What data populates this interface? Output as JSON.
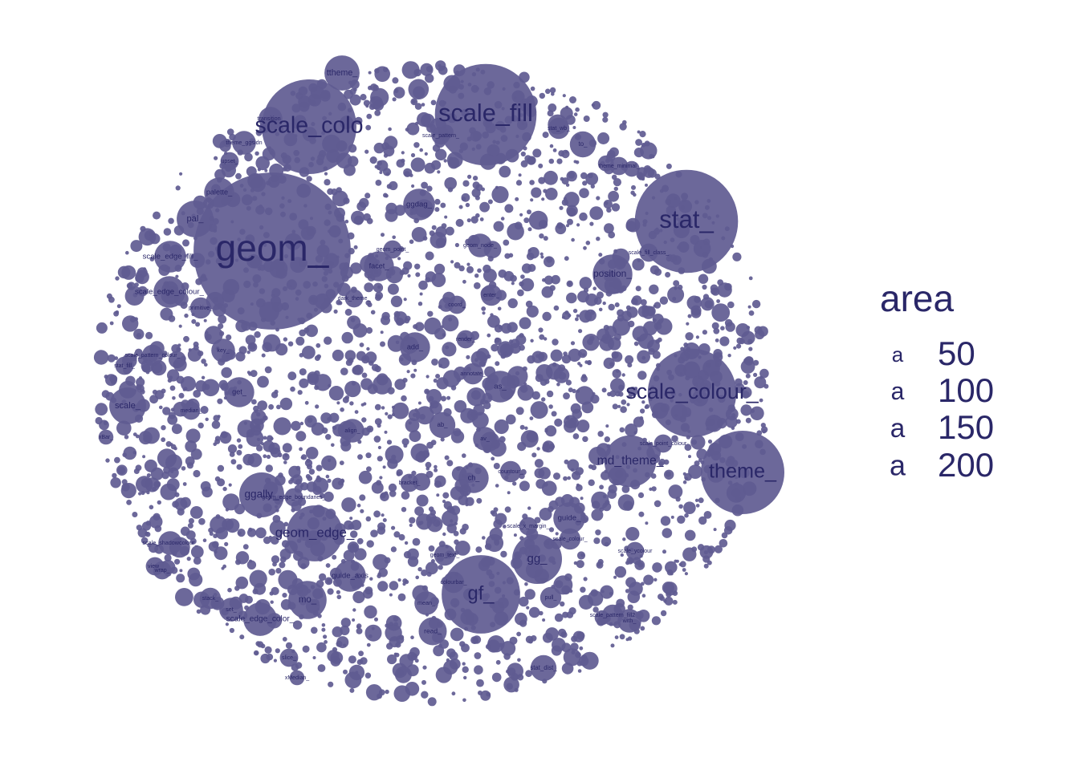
{
  "chart_data": {
    "type": "packed-bubble",
    "size_variable": "area",
    "legend": {
      "title": "area",
      "key_glyph": "a",
      "entries": [
        50,
        100,
        150,
        200
      ]
    },
    "colors": {
      "bubble": "#5f5b91",
      "text": "#2a2768",
      "background": "#ffffff"
    },
    "bubbles": [
      {
        "label": "geom_",
        "area": 220
      },
      {
        "label": "stat_",
        "area": 95
      },
      {
        "label": "scale_fill",
        "area": 92
      },
      {
        "label": "scale_colour_",
        "area": 70
      },
      {
        "label": "scale_colo",
        "area": 80
      },
      {
        "label": "theme_",
        "area": 62
      },
      {
        "label": "gf_",
        "area": 55
      },
      {
        "label": "geom_edge_",
        "area": 28
      },
      {
        "label": "md_theme_",
        "area": 24
      },
      {
        "label": "gg_",
        "area": 22
      },
      {
        "label": "ggally_",
        "area": 18
      },
      {
        "label": "position_",
        "area": 14
      },
      {
        "label": "pal_",
        "area": 12
      },
      {
        "label": "ttheme_",
        "area": 11
      },
      {
        "label": "mo_",
        "area": 13
      },
      {
        "label": "scale_edge_color_",
        "area": 10
      },
      {
        "label": "scale_edge_colour_",
        "area": 9
      },
      {
        "label": "scale_edge_fill_",
        "area": 9
      },
      {
        "label": "scale_",
        "area": 12
      },
      {
        "label": "guide_axis",
        "area": 9
      },
      {
        "label": "guide_",
        "area": 9
      },
      {
        "label": "as_",
        "area": 9
      },
      {
        "label": "ggdag_",
        "area": 9
      },
      {
        "label": "ch_",
        "area": 8
      },
      {
        "label": "facet_",
        "area": 8
      },
      {
        "label": "get_",
        "area": 8
      },
      {
        "label": "add_",
        "area": 8
      },
      {
        "label": "palette_",
        "area": 8
      },
      {
        "label": "read_",
        "area": 7
      },
      {
        "label": "to_",
        "area": 6
      },
      {
        "label": "stat_dist_",
        "area": 6
      },
      {
        "label": "ab_",
        "area": 6
      },
      {
        "label": "av_",
        "area": 5
      },
      {
        "label": "align_",
        "area": 5
      },
      {
        "label": "mean_",
        "area": 5
      },
      {
        "label": "with_",
        "area": 5
      },
      {
        "label": "set_",
        "area": 5
      },
      {
        "label": "key_",
        "area": 5
      },
      {
        "label": "transition_",
        "area": 5
      },
      {
        "label": "theme_ggsidn",
        "area": 5
      },
      {
        "label": "geom_node_",
        "area": 5
      },
      {
        "label": "scale_shadowcolour_",
        "area": 5
      },
      {
        "label": "stat_wb_",
        "area": 4
      },
      {
        "label": "primitive_",
        "area": 4
      },
      {
        "label": "scale_pattern_colour_",
        "area": 4
      },
      {
        "label": "geom_text_",
        "area": 4
      },
      {
        "label": "scale_colour_",
        "area": 4
      },
      {
        "label": "scale_pattern_fill2",
        "area": 4
      },
      {
        "label": "pull_",
        "area": 4
      },
      {
        "label": "stack_",
        "area": 4
      },
      {
        "label": "enter_",
        "area": 4
      },
      {
        "label": "annotate_",
        "area": 4
      },
      {
        "label": "countour_",
        "area": 4
      },
      {
        "label": "colourbar_",
        "area": 4
      },
      {
        "label": "wrap_",
        "area": 3
      },
      {
        "label": "view_",
        "area": 3
      },
      {
        "label": "slice_",
        "area": 3
      },
      {
        "label": "scale_x_margin_",
        "area": 3
      },
      {
        "label": "scale_ycolour",
        "area": 3
      },
      {
        "label": "geom_edge_boundaries_",
        "area": 3
      },
      {
        "label": "theme_minimal_",
        "area": 3
      },
      {
        "label": "scale_fill_class_",
        "area": 3
      },
      {
        "label": "scale_point_colour",
        "area": 3
      },
      {
        "label": "scale_pattern_",
        "area": 3
      },
      {
        "label": "xMedian_",
        "area": 2
      },
      {
        "label": "xBar_",
        "area": 2
      },
      {
        "label": "stat_fill_",
        "area": 3
      },
      {
        "label": "upset_",
        "area": 3
      },
      {
        "label": "dark_theme_",
        "area": 3
      },
      {
        "label": "geom_point_",
        "area": 3
      },
      {
        "label": "coord_",
        "area": 3
      },
      {
        "label": "median_",
        "area": 3
      },
      {
        "label": "bracket_",
        "area": 3
      },
      {
        "label": "render_",
        "area": 3
      }
    ]
  }
}
